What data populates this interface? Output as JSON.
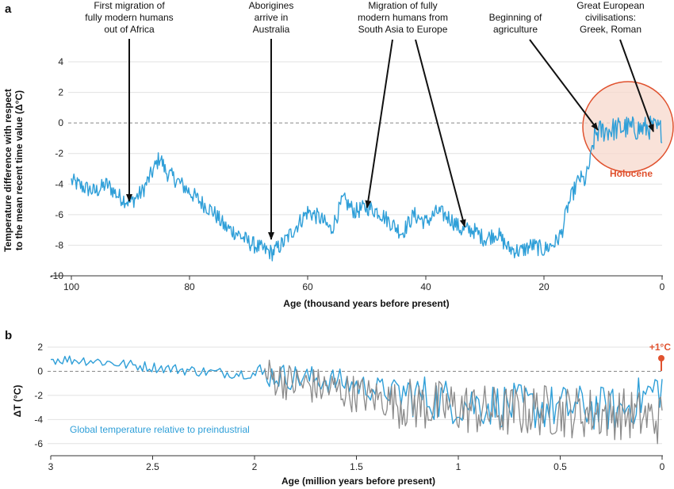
{
  "colors": {
    "series_blue": "#2f9fd8",
    "series_gray": "#8a8a8a",
    "holocene": "#e0522f",
    "holocene_fill": "#f7d8cc",
    "marker_red": "#e0522f"
  },
  "panel_a": {
    "label": "a",
    "annotations": {
      "migration_africa_line1": "First migration of",
      "migration_africa_line2": "fully modern humans",
      "migration_africa_line3": "out of Africa",
      "aborigines_line1": "Aborigines",
      "aborigines_line2": "arrive in",
      "aborigines_line3": "Australia",
      "migration_europe_line1": "Migration of fully",
      "migration_europe_line2": "modern humans from",
      "migration_europe_line3": "South Asia to Europe",
      "agriculture_line1": "Beginning of",
      "agriculture_line2": "agriculture",
      "civilisations_line1": "Great European",
      "civilisations_line2": "civilisations:",
      "civilisations_line3": "Greek, Roman"
    },
    "holocene_label": "Holocene"
  },
  "panel_b": {
    "label": "b",
    "plus_one_label": "+1°C",
    "legend_text": "Global temperature relative to preindustrial"
  },
  "chart_data": [
    {
      "type": "line",
      "xlabel": "Age (thousand years before present)",
      "ylabel_line1": "Temperature difference with respect",
      "ylabel_line2": "to the mean recent time value (Δ°C)",
      "xlim": [
        100,
        0
      ],
      "ylim": [
        -10,
        4
      ],
      "xticks": [
        "100",
        "80",
        "60",
        "40",
        "20",
        "0"
      ],
      "yticks": [
        "4",
        "2",
        "0",
        "-2",
        "-4",
        "-6",
        "-8",
        "-10"
      ],
      "grid": true,
      "series": [
        {
          "color": "#2f9fd8",
          "x": [
            100,
            98,
            96,
            94,
            92,
            90,
            88,
            86,
            85,
            84,
            82,
            80,
            78,
            76,
            74,
            72,
            70,
            68,
            66,
            64,
            62,
            60,
            58,
            56,
            54,
            52,
            50,
            48,
            46,
            44,
            42,
            40,
            38,
            36,
            34,
            32,
            30,
            28,
            26,
            24,
            22,
            20,
            18,
            17,
            16,
            15,
            14,
            13,
            12,
            11.5,
            11,
            10,
            8,
            6,
            4,
            2,
            0
          ],
          "y": [
            -3.8,
            -4.2,
            -4.5,
            -4.0,
            -4.8,
            -5.2,
            -4.5,
            -3.0,
            -2.2,
            -3.2,
            -3.8,
            -4.5,
            -5.2,
            -5.8,
            -6.8,
            -7.2,
            -7.8,
            -8.2,
            -8.5,
            -7.8,
            -6.8,
            -5.8,
            -6.2,
            -7.0,
            -5.0,
            -5.8,
            -5.5,
            -5.8,
            -6.5,
            -7.2,
            -6.0,
            -6.5,
            -5.8,
            -6.2,
            -7.0,
            -7.0,
            -7.6,
            -7.2,
            -8.2,
            -8.4,
            -8.0,
            -8.3,
            -7.8,
            -7.2,
            -5.5,
            -4.5,
            -3.6,
            -3.8,
            -2.2,
            -1.0,
            -0.6,
            -0.5,
            -0.4,
            -0.3,
            -0.4,
            -0.3,
            -0.5
          ]
        }
      ]
    },
    {
      "type": "line",
      "xlabel": "Age (million years before present)",
      "ylabel": "ΔT (°C)",
      "xlim": [
        3,
        0
      ],
      "ylim": [
        -7,
        2
      ],
      "xticks": [
        "3",
        "2.5",
        "2",
        "1.5",
        "1",
        "0.5",
        "0"
      ],
      "yticks": [
        "2",
        "0",
        "-2",
        "-4",
        "-6"
      ],
      "grid": true,
      "series": [
        {
          "color": "#2f9fd8",
          "x": [
            3.0,
            2.8,
            2.6,
            2.4,
            2.2,
            2.0,
            1.8,
            1.6,
            1.4,
            1.2,
            1.0,
            0.8,
            0.6,
            0.4,
            0.2,
            0.0
          ],
          "y": [
            1.0,
            0.9,
            0.5,
            0.2,
            -0.1,
            -0.2,
            -0.5,
            -0.8,
            -1.5,
            -2.0,
            -2.6,
            -2.8,
            -3.0,
            -3.0,
            -3.2,
            -1.2
          ]
        },
        {
          "color": "#8a8a8a",
          "x": [
            1.95,
            1.8,
            1.6,
            1.4,
            1.2,
            1.0,
            0.8,
            0.6,
            0.4,
            0.2,
            0.0
          ],
          "y": [
            -0.3,
            -1.0,
            -1.5,
            -2.2,
            -2.8,
            -3.0,
            -3.4,
            -3.2,
            -3.4,
            -3.5,
            -4.0
          ]
        }
      ]
    }
  ]
}
